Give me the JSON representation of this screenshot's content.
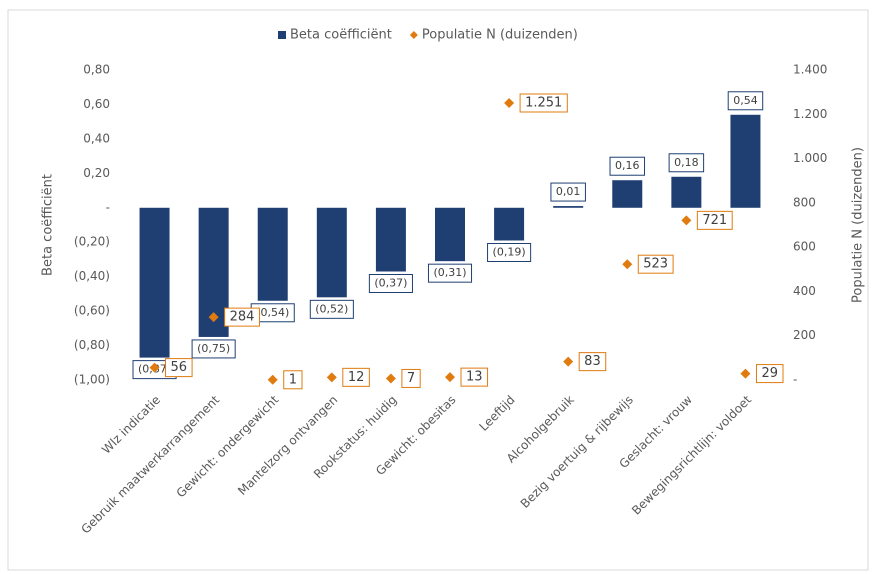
{
  "chart_data": {
    "type": "bar",
    "categories": [
      "Wlz indicatie",
      "Gebruik maatwerkarrangement",
      "Gewicht: ondergewicht",
      "Mantelzorg ontvangen",
      "Rookstatus: huidig",
      "Gewicht: obesitas",
      "Leeftijd",
      "Alcoholgebruik",
      "Bezig voertuig & rijbewijs",
      "Geslacht: vrouw",
      "Bewegingsrichtlijn: voldoet"
    ],
    "series": [
      {
        "name": "Beta coëfficiënt",
        "color": "#1f3f73",
        "type": "bar",
        "values": [
          -0.87,
          -0.75,
          -0.54,
          -0.52,
          -0.37,
          -0.31,
          -0.19,
          0.01,
          0.16,
          0.18,
          0.54
        ],
        "value_labels": [
          "(0,87)",
          "(0,75)",
          "(0,54)",
          "(0,52)",
          "(0,37)",
          "(0,31)",
          "(0,19)",
          "0,01",
          "0,16",
          "0,18",
          "0,54"
        ]
      },
      {
        "name": "Populatie N (duizenden)",
        "color": "#e07b10",
        "type": "scatter",
        "axis": "y2",
        "values": [
          56,
          284,
          1,
          12,
          7,
          13,
          1251,
          83,
          523,
          721,
          29
        ],
        "value_labels": [
          "56",
          "284",
          "1",
          "12",
          "7",
          "13",
          "1.251",
          "83",
          "523",
          "721",
          "29"
        ]
      }
    ],
    "y_label": "Beta coëfficiënt",
    "y2_label": "Populatie N (duizenden)",
    "ylim": [
      -1,
      0.8
    ],
    "yticks": [
      {
        "value": -1,
        "label": "(1,00)"
      },
      {
        "value": -0.8,
        "label": "(0,80)"
      },
      {
        "value": -0.6,
        "label": "(0,60)"
      },
      {
        "value": -0.4,
        "label": "(0,40)"
      },
      {
        "value": -0.2,
        "label": "(0,20)"
      },
      {
        "value": 0,
        "label": "-"
      },
      {
        "value": 0.2,
        "label": "0,20"
      },
      {
        "value": 0.4,
        "label": "0,40"
      },
      {
        "value": 0.6,
        "label": "0,60"
      },
      {
        "value": 0.8,
        "label": "0,80"
      }
    ],
    "y2lim": [
      0,
      1400
    ],
    "y2ticks": [
      {
        "value": 0,
        "label": "-"
      },
      200,
      400,
      600,
      800,
      {
        "value": 1000,
        "label": "1.000"
      },
      {
        "value": 1200,
        "label": "1.200"
      },
      {
        "value": 1400,
        "label": "1.400"
      }
    ],
    "legend": "top",
    "grid": false
  }
}
